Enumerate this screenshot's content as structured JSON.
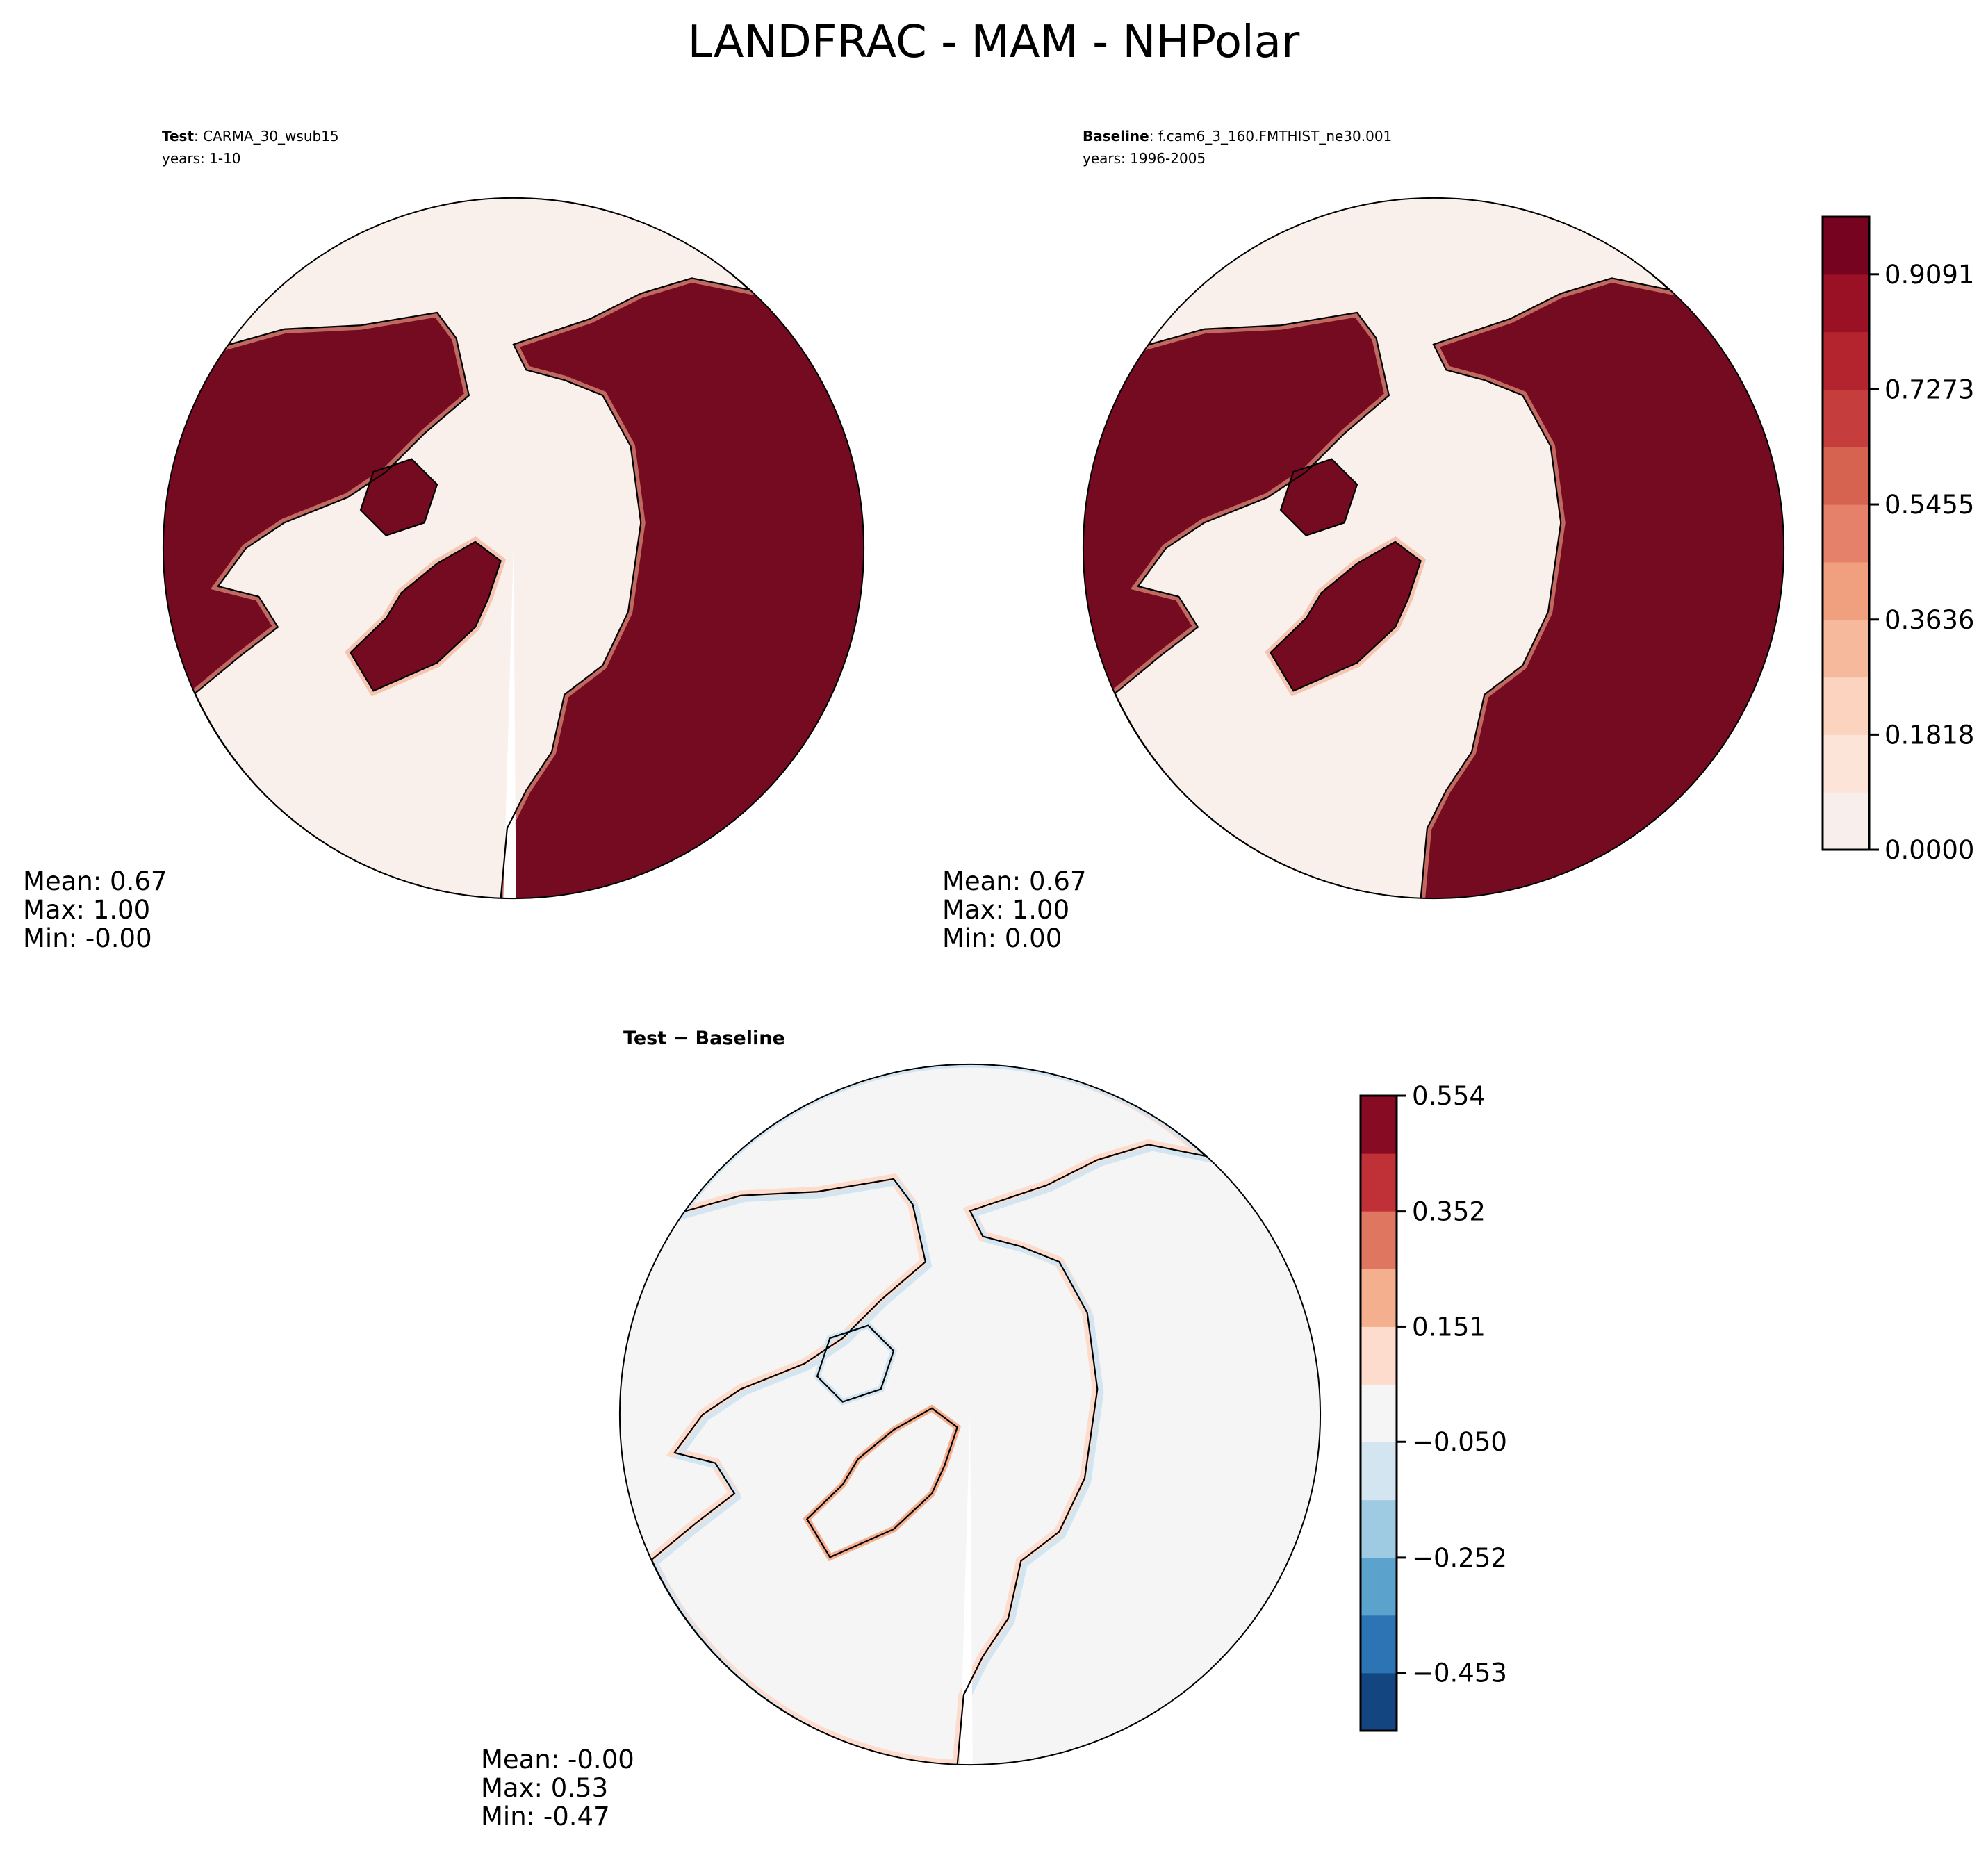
{
  "title": "LANDFRAC - MAM - NHPolar",
  "chart_data": [
    {
      "type": "heatmap",
      "projection": "north polar stereographic",
      "panel": "test",
      "label_bold": "Test",
      "label_rest": ": CARMA_30_wsub15",
      "years": "years: 1-10",
      "stats": {
        "mean": "Mean:  0.67",
        "max": "Max:  1.00",
        "min": "Min: -0.00"
      },
      "colors": {
        "ocean": "#f9efeb",
        "land": "#750b21",
        "coast": "#000000"
      }
    },
    {
      "type": "heatmap",
      "projection": "north polar stereographic",
      "panel": "baseline",
      "label_bold": "Baseline",
      "label_rest": ": f.cam6_3_160.FMTHIST_ne30.001",
      "years": "years: 1996-2005",
      "stats": {
        "mean": "Mean:  0.67",
        "max": "Max:  1.00",
        "min": "Min:  0.00"
      },
      "colors": {
        "ocean": "#f9efeb",
        "land": "#750b21",
        "coast": "#000000"
      },
      "colorbar": {
        "range": [
          0,
          1
        ],
        "ticks": [
          "0.0000",
          "0.1818",
          "0.3636",
          "0.5455",
          "0.7273",
          "0.9091"
        ],
        "tick_values": [
          0,
          0.1818,
          0.3636,
          0.5455,
          0.7273,
          0.9091
        ],
        "colormap": "Reds",
        "levels": [
          "#f8efec",
          "#fce4d9",
          "#fcd3bf",
          "#f7b99c",
          "#f0a07e",
          "#e5806a",
          "#d6634f",
          "#c53e3d",
          "#b4242f",
          "#9a1126",
          "#760320"
        ]
      }
    },
    {
      "type": "heatmap",
      "projection": "north polar stereographic",
      "panel": "difference",
      "label": "Test − Baseline",
      "stats": {
        "mean": "Mean: -0.00",
        "max": "Max:  0.53",
        "min": "Min: -0.47"
      },
      "colors": {
        "background": "#f5f5f5",
        "coast": "#000000"
      },
      "colorbar": {
        "range": [
          -0.554,
          0.554
        ],
        "ticks": [
          "0.554",
          "0.352",
          "0.151",
          "−0.050",
          "−0.252",
          "−0.453"
        ],
        "tick_values": [
          0.554,
          0.352,
          0.151,
          -0.05,
          -0.252,
          -0.453
        ],
        "colormap": "RdBu_r",
        "levels": [
          "#880b24",
          "#c03037",
          "#de7660",
          "#f4af8e",
          "#fddcce",
          "#f5f5f5",
          "#d3e5f1",
          "#9fcbe2",
          "#5ba2cc",
          "#2c74b4",
          "#134580"
        ]
      }
    }
  ]
}
